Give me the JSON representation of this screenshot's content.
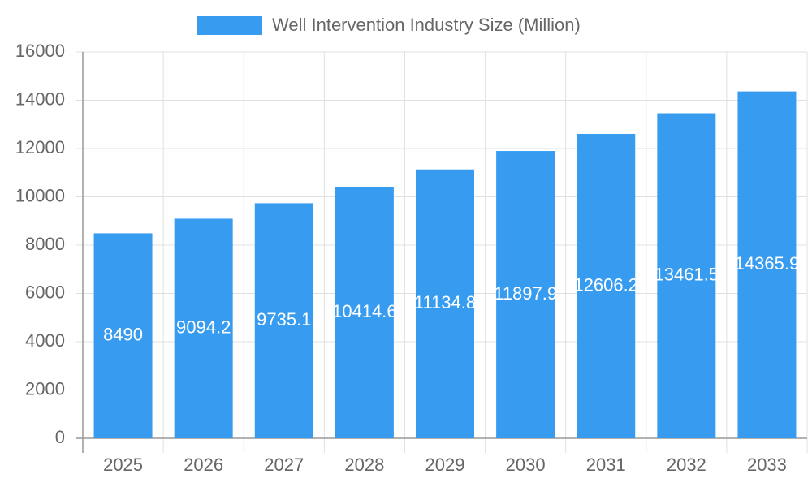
{
  "chart_data": {
    "type": "bar",
    "legend_label": "Well Intervention Industry Size (Million)",
    "categories": [
      "2025",
      "2026",
      "2027",
      "2028",
      "2029",
      "2030",
      "2031",
      "2032",
      "2033"
    ],
    "values": [
      8490,
      9094.2,
      9735.1,
      10414.6,
      11134.8,
      11897.9,
      12606.2,
      13461.5,
      14365.9
    ],
    "color": "#379cf0",
    "ylim": [
      0,
      16000
    ],
    "yticks": [
      0,
      2000,
      4000,
      6000,
      8000,
      10000,
      12000,
      14000,
      16000
    ],
    "grid": true,
    "legend": "top"
  }
}
